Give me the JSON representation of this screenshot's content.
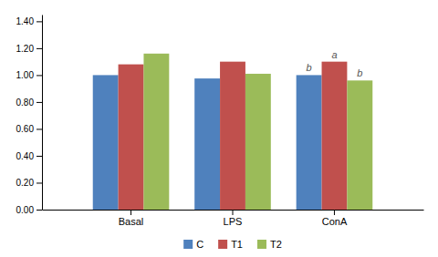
{
  "chart_data": {
    "type": "bar",
    "categories": [
      "Basal",
      "LPS",
      "ConA"
    ],
    "series": [
      {
        "name": "C",
        "color": "#4F81BD",
        "values": [
          1.0,
          0.975,
          1.0
        ]
      },
      {
        "name": "T1",
        "color": "#C0504D",
        "values": [
          1.08,
          1.1,
          1.1
        ]
      },
      {
        "name": "T2",
        "color": "#9BBB59",
        "values": [
          1.16,
          1.01,
          0.96
        ]
      }
    ],
    "ylim": [
      0.0,
      1.45
    ],
    "yticks": [
      {
        "value": 0.0,
        "label": "0.00"
      },
      {
        "value": 0.2,
        "label": "0.20"
      },
      {
        "value": 0.4,
        "label": "0.40"
      },
      {
        "value": 0.6,
        "label": "0.60"
      },
      {
        "value": 0.8,
        "label": "0.80"
      },
      {
        "value": 1.0,
        "label": "1.00"
      },
      {
        "value": 1.2,
        "label": "1.20"
      },
      {
        "value": 1.4,
        "label": "1.40"
      }
    ],
    "annotations": [
      {
        "text": "b",
        "category": "ConA",
        "series": "C"
      },
      {
        "text": "a",
        "category": "ConA",
        "series": "T1"
      },
      {
        "text": "b",
        "category": "ConA",
        "series": "T2"
      }
    ],
    "grid": false,
    "legend": "bottom"
  }
}
